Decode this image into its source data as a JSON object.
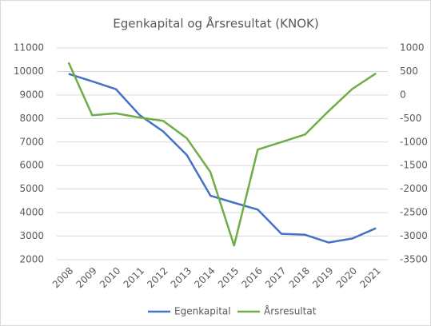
{
  "chart_data": {
    "type": "line",
    "title": "Egenkapital og Årsresultat (KNOK)",
    "categories": [
      "2008",
      "2009",
      "2010",
      "2011",
      "2012",
      "2013",
      "2014",
      "2015",
      "2016",
      "2017",
      "2018",
      "2019",
      "2020",
      "2021"
    ],
    "series": [
      {
        "name": "Egenkapital",
        "color": "#4472c4",
        "values": [
          9900,
          9580,
          9250,
          8150,
          7450,
          6450,
          4720,
          4420,
          4130,
          3100,
          3060,
          2730,
          2900,
          3340
        ]
      },
      {
        "name": "Årsresultat",
        "color": "#70ad47",
        "axis": "y2",
        "values": [
          690,
          -430,
          -390,
          -480,
          -550,
          -920,
          -1640,
          -3200,
          -1160,
          -1000,
          -840,
          -340,
          130,
          460
        ]
      }
    ],
    "ylim": [
      2000,
      11000
    ],
    "yticks": [
      2000,
      3000,
      4000,
      5000,
      6000,
      7000,
      8000,
      9000,
      10000,
      11000
    ],
    "y2lim": [
      -3500,
      1000
    ],
    "y2ticks": [
      -3500,
      -3000,
      -2500,
      -2000,
      -1500,
      -1000,
      -500,
      0,
      500,
      1000
    ],
    "grid": true,
    "legend": "bottom"
  }
}
